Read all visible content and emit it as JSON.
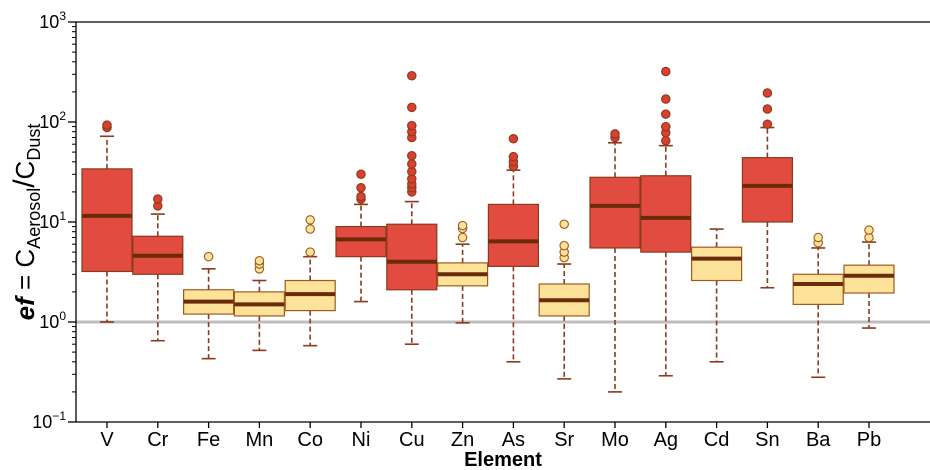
{
  "chart_data": {
    "type": "boxplot",
    "xlabel": "Element",
    "ylabel": {
      "italic": "ef",
      "eq": " = C",
      "num_sub": "Aerosol",
      "slash": "/",
      "den": "C",
      "den_sub": "Dust"
    },
    "yscale": "log",
    "ylim": [
      0.1,
      1000
    ],
    "yticks": [
      {
        "value": 0.1,
        "base": "10",
        "exp": "−1"
      },
      {
        "value": 1,
        "base": "10",
        "exp": "0"
      },
      {
        "value": 10,
        "base": "10",
        "exp": "1"
      },
      {
        "value": 100,
        "base": "10",
        "exp": "2"
      },
      {
        "value": 1000,
        "base": "10",
        "exp": "3"
      }
    ],
    "reference_line": 1,
    "colors": {
      "high": "#e24b3f",
      "high_edge": "#8b3a1c",
      "low": "#fde39a",
      "low_edge": "#a05a1c",
      "median": "#6b2a0a",
      "whisker": "#8b3a1c",
      "refline": "#bdbdbd",
      "outlier_high": "#d9402f",
      "outlier_low": "#fde39a"
    },
    "categories": [
      "V",
      "Cr",
      "Fe",
      "Mn",
      "Co",
      "Ni",
      "Cu",
      "Zn",
      "As",
      "Sr",
      "Mo",
      "Ag",
      "Cd",
      "Sn",
      "Ba",
      "Pb"
    ],
    "boxes": [
      {
        "group": "high",
        "min": 1.0,
        "q1": 3.2,
        "median": 11.5,
        "q3": 34,
        "max": 72,
        "outliers": [
          88,
          93
        ]
      },
      {
        "group": "high",
        "min": 0.65,
        "q1": 3.0,
        "median": 4.6,
        "q3": 7.2,
        "max": 12,
        "outliers": [
          14.5,
          17
        ]
      },
      {
        "group": "low",
        "min": 0.43,
        "q1": 1.2,
        "median": 1.6,
        "q3": 2.1,
        "max": 3.4,
        "outliers": [
          4.5
        ]
      },
      {
        "group": "low",
        "min": 0.52,
        "q1": 1.15,
        "median": 1.5,
        "q3": 2.0,
        "max": 2.6,
        "outliers": [
          3.4,
          3.8,
          4.1
        ]
      },
      {
        "group": "low",
        "min": 0.58,
        "q1": 1.3,
        "median": 1.9,
        "q3": 2.6,
        "max": 4.5,
        "outliers": [
          5.0,
          8.5,
          10.5
        ]
      },
      {
        "group": "high",
        "min": 1.6,
        "q1": 4.5,
        "median": 6.7,
        "q3": 9.0,
        "max": 15,
        "outliers": [
          17,
          18,
          22,
          30
        ]
      },
      {
        "group": "high",
        "min": 0.6,
        "q1": 2.1,
        "median": 4.0,
        "q3": 9.5,
        "max": 16,
        "outliers": [
          20,
          22,
          24,
          27,
          32,
          38,
          46,
          70,
          80,
          92,
          140,
          290
        ]
      },
      {
        "group": "low",
        "min": 0.98,
        "q1": 2.3,
        "median": 3.0,
        "q3": 3.9,
        "max": 6.0,
        "outliers": [
          7.0,
          8.6,
          9.2
        ]
      },
      {
        "group": "high",
        "min": 0.4,
        "q1": 3.6,
        "median": 6.4,
        "q3": 15,
        "max": 33,
        "outliers": [
          36,
          40,
          45,
          68
        ]
      },
      {
        "group": "low",
        "min": 0.27,
        "q1": 1.15,
        "median": 1.65,
        "q3": 2.4,
        "max": 3.8,
        "outliers": [
          4.4,
          5.0,
          5.8,
          9.5
        ]
      },
      {
        "group": "high",
        "min": 0.2,
        "q1": 5.5,
        "median": 14.5,
        "q3": 28,
        "max": 62,
        "outliers": [
          70,
          76
        ]
      },
      {
        "group": "high",
        "min": 0.29,
        "q1": 5.0,
        "median": 11,
        "q3": 29,
        "max": 58,
        "outliers": [
          65,
          78,
          90,
          120,
          170,
          320
        ]
      },
      {
        "group": "low",
        "min": 0.4,
        "q1": 2.6,
        "median": 4.3,
        "q3": 5.6,
        "max": 8.5,
        "outliers": []
      },
      {
        "group": "high",
        "min": 2.2,
        "q1": 10,
        "median": 23,
        "q3": 44,
        "max": 88,
        "outliers": [
          95,
          135,
          195
        ]
      },
      {
        "group": "low",
        "min": 0.28,
        "q1": 1.5,
        "median": 2.4,
        "q3": 3.0,
        "max": 5.5,
        "outliers": [
          6.2,
          7.0
        ]
      },
      {
        "group": "low",
        "min": 0.87,
        "q1": 1.95,
        "median": 2.9,
        "q3": 3.7,
        "max": 6.3,
        "outliers": [
          7.0,
          8.3
        ]
      }
    ]
  }
}
